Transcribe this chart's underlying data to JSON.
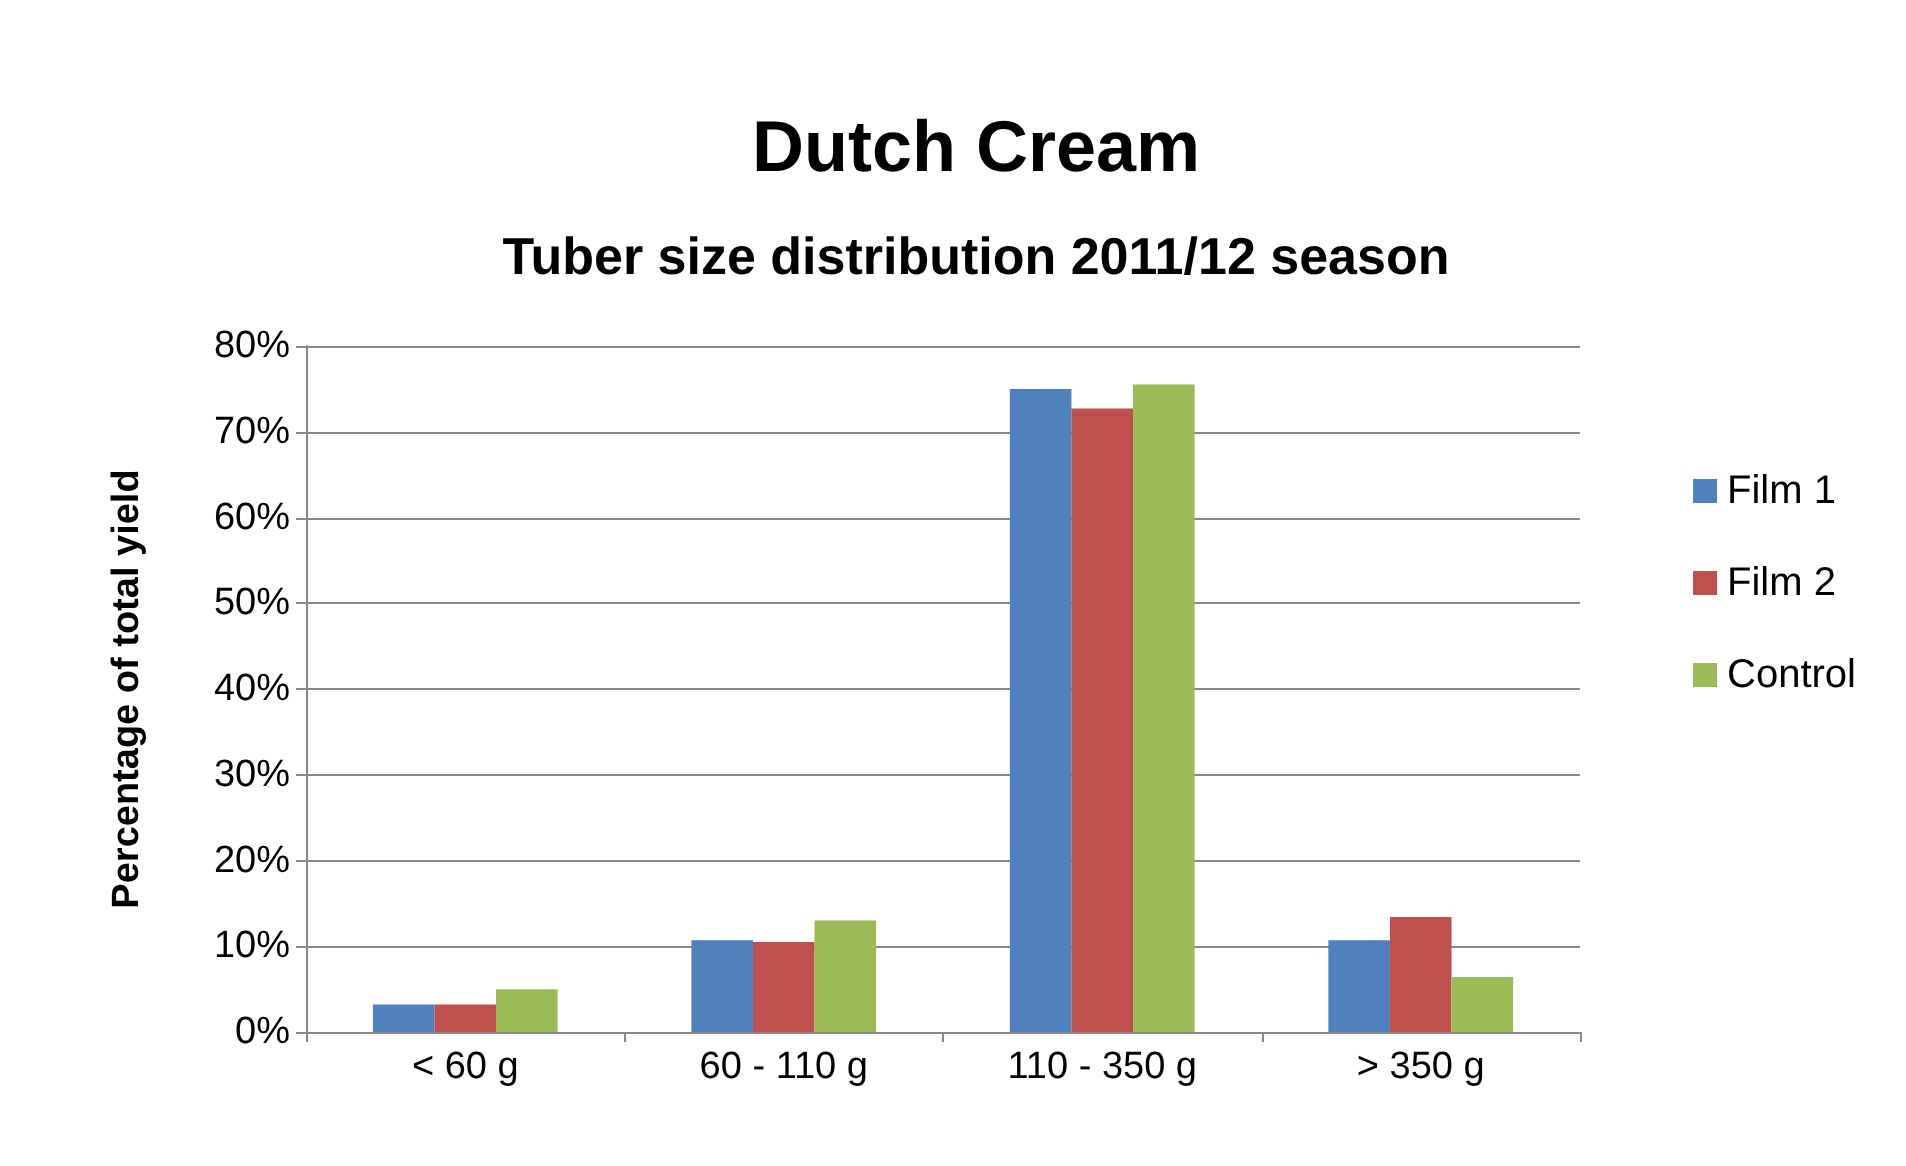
{
  "chart_data": {
    "type": "bar",
    "title": "Dutch Cream",
    "subtitle": "Tuber size distribution 2011/12 season",
    "ylabel": "Percentage of total yield",
    "categories": [
      "< 60 g",
      "60 - 110 g",
      "110 - 350 g",
      "> 350 g"
    ],
    "series": [
      {
        "name": "Film 1",
        "color": "#4f81bd",
        "values": [
          3.2,
          10.7,
          75,
          10.7
        ]
      },
      {
        "name": "Film 2",
        "color": "#c0504d",
        "values": [
          3.2,
          10.5,
          72.7,
          13.4
        ]
      },
      {
        "name": "Control",
        "color": "#9bbb59",
        "values": [
          5,
          13,
          75.5,
          6.4
        ]
      }
    ],
    "ylim": [
      0,
      80
    ],
    "yticks": [
      {
        "value": 0,
        "label": "0%"
      },
      {
        "value": 10,
        "label": "10%"
      },
      {
        "value": 20,
        "label": "20%"
      },
      {
        "value": 30,
        "label": "30%"
      },
      {
        "value": 40,
        "label": "40%"
      },
      {
        "value": 50,
        "label": "50%"
      },
      {
        "value": 60,
        "label": "60%"
      },
      {
        "value": 70,
        "label": "70%"
      },
      {
        "value": 80,
        "label": "80%"
      }
    ],
    "grid": "y",
    "legend": "right"
  }
}
